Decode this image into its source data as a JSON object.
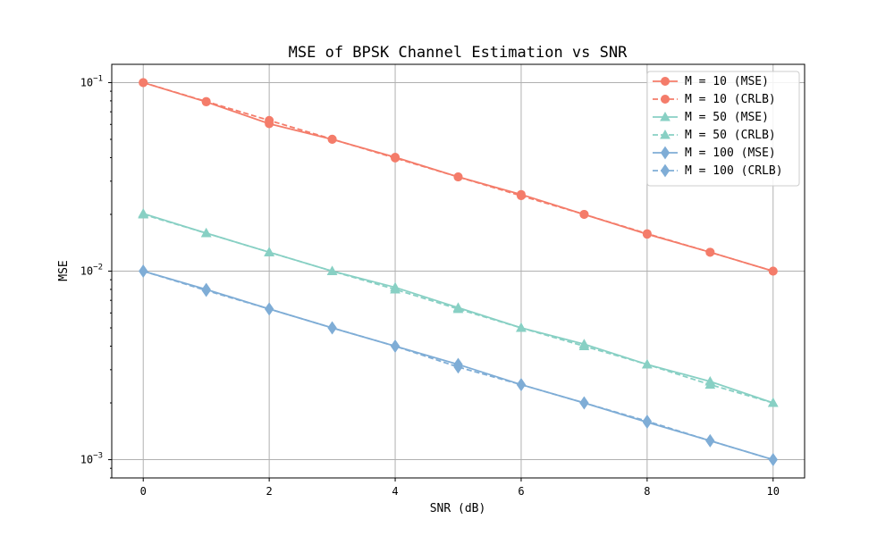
{
  "chart_data": {
    "type": "line",
    "title": "MSE of BPSK Channel Estimation vs SNR",
    "xlabel": "SNR (dB)",
    "ylabel": "MSE",
    "xlim": [
      -0.5,
      10.5
    ],
    "ylim": [
      0.0008,
      0.125
    ],
    "yscale": "log",
    "grid": true,
    "legend_position": "top-right",
    "x": [
      0,
      1,
      2,
      3,
      4,
      5,
      6,
      7,
      8,
      9,
      10
    ],
    "x_ticks": [
      0,
      2,
      4,
      6,
      8,
      10
    ],
    "x_tick_labels": [
      "0",
      "2",
      "4",
      "6",
      "8",
      "10"
    ],
    "y_ticks": [
      0.001,
      0.01,
      0.1
    ],
    "y_tick_labels": [
      {
        "base": "10",
        "exp": "−3"
      },
      {
        "base": "10",
        "exp": "−2"
      },
      {
        "base": "10",
        "exp": "−1"
      }
    ],
    "series": [
      {
        "name": "M = 10 (MSE)",
        "color": "#f47c6a",
        "dash": "solid",
        "marker": "circle",
        "values": [
          0.1,
          0.079,
          0.0605,
          0.05,
          0.0402,
          0.0316,
          0.0255,
          0.02,
          0.0157,
          0.0126,
          0.01
        ]
      },
      {
        "name": "M = 10 (CRLB)",
        "color": "#f47c6a",
        "dash": "dashed",
        "marker": "circle",
        "values": [
          0.1,
          0.0794,
          0.063,
          0.0501,
          0.0398,
          0.0316,
          0.0251,
          0.02,
          0.0158,
          0.0126,
          0.01
        ]
      },
      {
        "name": "M = 50 (MSE)",
        "color": "#88d0c4",
        "dash": "solid",
        "marker": "triangle",
        "values": [
          0.0202,
          0.0159,
          0.0126,
          0.01,
          0.0082,
          0.0064,
          0.005,
          0.0041,
          0.0032,
          0.0026,
          0.002
        ]
      },
      {
        "name": "M = 50 (CRLB)",
        "color": "#88d0c4",
        "dash": "dashed",
        "marker": "triangle",
        "values": [
          0.02,
          0.0159,
          0.0126,
          0.01,
          0.008,
          0.0063,
          0.005,
          0.004,
          0.0032,
          0.0025,
          0.002
        ]
      },
      {
        "name": "M = 100 (MSE)",
        "color": "#7fadd6",
        "dash": "solid",
        "marker": "diamond",
        "values": [
          0.01,
          0.008,
          0.0063,
          0.005,
          0.004,
          0.0032,
          0.0025,
          0.002,
          0.00158,
          0.00126,
          0.001
        ]
      },
      {
        "name": "M = 100 (CRLB)",
        "color": "#7fadd6",
        "dash": "dashed",
        "marker": "diamond",
        "values": [
          0.01,
          0.0079,
          0.0063,
          0.005,
          0.004,
          0.0031,
          0.0025,
          0.002,
          0.0016,
          0.00126,
          0.001
        ]
      }
    ]
  }
}
